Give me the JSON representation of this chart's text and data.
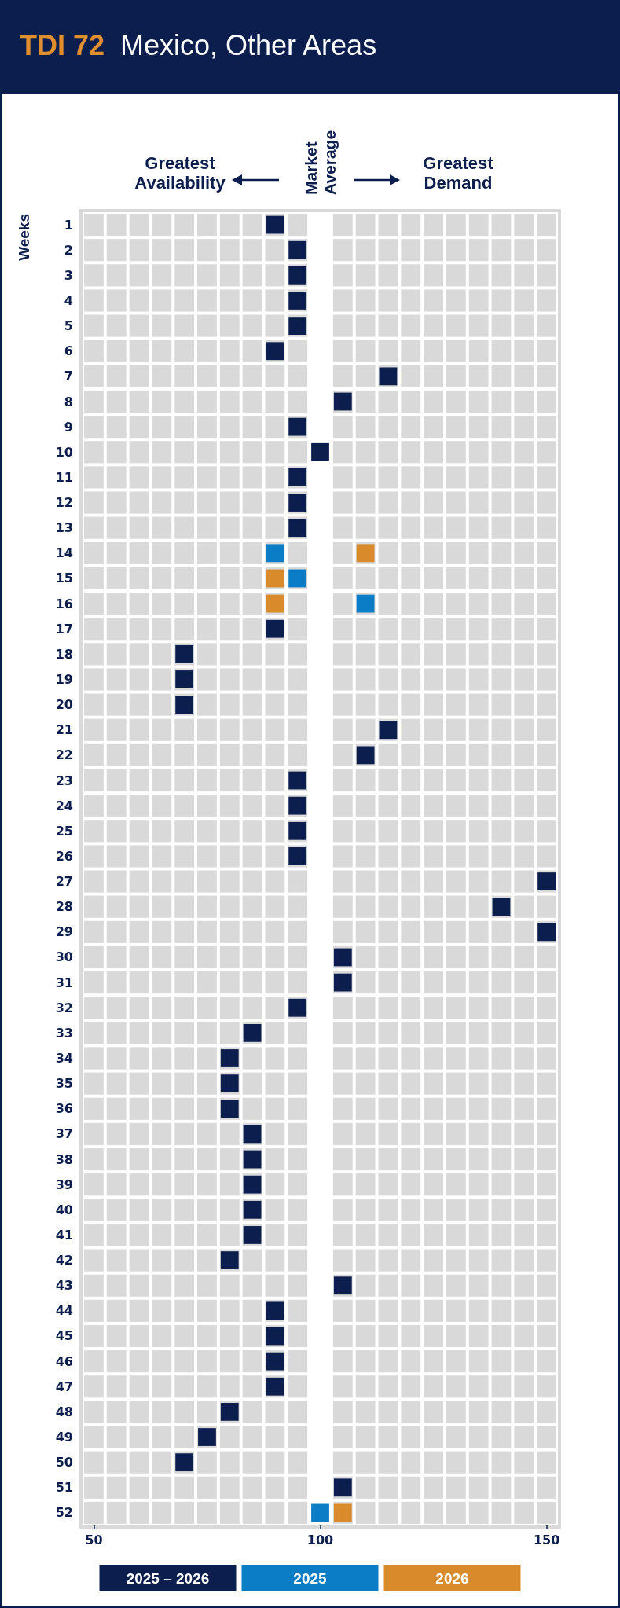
{
  "chart_data": {
    "type": "scatter",
    "title": "TDI 72",
    "subtitle": "Mexico, Other Areas",
    "ylabel": "Weeks",
    "annotations": [
      "Greatest Availability",
      "Market Average",
      "Greatest Demand"
    ],
    "series": [
      {
        "name": "2025 – 2026",
        "color": "#0c1e4d",
        "x": [
          90,
          95,
          95,
          95,
          95,
          90,
          115,
          105,
          95,
          100,
          95,
          95,
          95,
          90,
          70,
          70,
          70,
          115,
          110,
          95,
          95,
          95,
          95,
          150,
          140,
          150,
          105,
          105,
          95,
          85,
          80,
          80,
          80,
          85,
          85,
          85,
          85,
          85,
          80,
          105,
          90,
          90,
          90,
          90,
          80,
          75,
          70,
          105
        ],
        "values": [
          1,
          2,
          3,
          4,
          5,
          6,
          7,
          8,
          9,
          10,
          11,
          12,
          13,
          17,
          18,
          19,
          20,
          21,
          22,
          23,
          24,
          25,
          26,
          27,
          28,
          29,
          30,
          31,
          32,
          33,
          34,
          35,
          36,
          37,
          38,
          39,
          40,
          41,
          42,
          43,
          44,
          45,
          46,
          47,
          48,
          49,
          50,
          51
        ]
      },
      {
        "name": "2025",
        "color": "#0a7dc6",
        "x": [
          90,
          95,
          110,
          100
        ],
        "values": [
          14,
          15,
          16,
          52
        ]
      },
      {
        "name": "2026",
        "color": "#d98b2b",
        "x": [
          110,
          90,
          90,
          105
        ],
        "values": [
          14,
          15,
          16,
          52
        ]
      }
    ],
    "xlim": [
      47.5,
      152.5
    ],
    "xticks": [
      50,
      100,
      150
    ],
    "ylim": [
      52.5,
      0.5
    ],
    "yticks": [
      1,
      2,
      3,
      4,
      5,
      6,
      7,
      8,
      9,
      10,
      11,
      12,
      13,
      14,
      15,
      16,
      17,
      18,
      19,
      20,
      21,
      22,
      23,
      24,
      25,
      26,
      27,
      28,
      29,
      30,
      31,
      32,
      33,
      34,
      35,
      36,
      37,
      38,
      39,
      40,
      41,
      42,
      43,
      44,
      45,
      46,
      47,
      48,
      49,
      50,
      51,
      52
    ],
    "bands": [
      {
        "axis": "x",
        "from": 97.5,
        "to": 102.5,
        "color": "#ffffff"
      }
    ],
    "legend": "bottom",
    "marker": "square"
  }
}
